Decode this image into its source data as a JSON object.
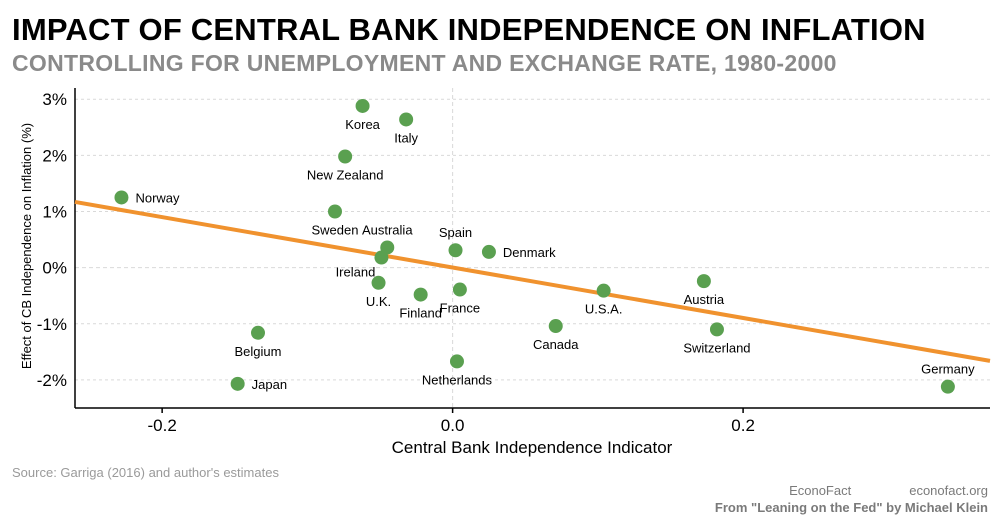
{
  "title": "IMPACT OF CENTRAL BANK INDEPENDENCE ON INFLATION",
  "subtitle": "CONTROLLING FOR UNEMPLOYMENT AND EXCHANGE RATE, 1980-2000",
  "footer": {
    "source": "Source: Garriga (2016) and author's estimates",
    "brand": "EconoFact",
    "website": "econofact.org",
    "from": "From \"Leaning on the Fed\" by Michael Klein"
  },
  "colors": {
    "points": "#5aa050",
    "trend": "#f0922e",
    "grid": "#d9d9d9",
    "axis": "#000000"
  },
  "chart_data": {
    "type": "scatter",
    "xlabel": "Central Bank Independence Indicator",
    "ylabel": "Effect of CB Independence on Inflation (%)",
    "xlim": [
      -0.26,
      0.37
    ],
    "ylim": [
      -2.5,
      3.2
    ],
    "xticks": [
      -0.2,
      0.0,
      0.2
    ],
    "xtick_labels": [
      "-0.2",
      "0.0",
      "0.2"
    ],
    "yticks": [
      -2,
      -1,
      0,
      1,
      2,
      3
    ],
    "ytick_labels": [
      "-2%",
      "-1%",
      "0%",
      "1%",
      "2%",
      "3%"
    ],
    "reference_lines": {
      "x": 0,
      "y": 0
    },
    "points": [
      {
        "label": "Korea",
        "x": -0.062,
        "y": 2.88,
        "label_pos": "below"
      },
      {
        "label": "Italy",
        "x": -0.032,
        "y": 2.64,
        "label_pos": "below"
      },
      {
        "label": "New Zealand",
        "x": -0.074,
        "y": 1.98,
        "label_pos": "below"
      },
      {
        "label": "Norway",
        "x": -0.228,
        "y": 1.25,
        "label_pos": "right"
      },
      {
        "label": "Sweden",
        "x": -0.081,
        "y": 1.0,
        "label_pos": "below"
      },
      {
        "label": "Australia",
        "x": -0.045,
        "y": 0.36,
        "label_pos": "above"
      },
      {
        "label": "Ireland",
        "x": -0.049,
        "y": 0.18,
        "label_pos": "below-left"
      },
      {
        "label": "Spain",
        "x": 0.002,
        "y": 0.31,
        "label_pos": "above"
      },
      {
        "label": "Denmark",
        "x": 0.025,
        "y": 0.28,
        "label_pos": "right"
      },
      {
        "label": "U.K.",
        "x": -0.051,
        "y": -0.27,
        "label_pos": "below"
      },
      {
        "label": "Finland",
        "x": -0.022,
        "y": -0.48,
        "label_pos": "below"
      },
      {
        "label": "France",
        "x": 0.005,
        "y": -0.39,
        "label_pos": "below"
      },
      {
        "label": "U.S.A.",
        "x": 0.104,
        "y": -0.41,
        "label_pos": "below"
      },
      {
        "label": "Austria",
        "x": 0.173,
        "y": -0.24,
        "label_pos": "below"
      },
      {
        "label": "Canada",
        "x": 0.071,
        "y": -1.04,
        "label_pos": "below"
      },
      {
        "label": "Switzerland",
        "x": 0.182,
        "y": -1.1,
        "label_pos": "below"
      },
      {
        "label": "Belgium",
        "x": -0.134,
        "y": -1.16,
        "label_pos": "below"
      },
      {
        "label": "Netherlands",
        "x": 0.003,
        "y": -1.67,
        "label_pos": "below"
      },
      {
        "label": "Japan",
        "x": -0.148,
        "y": -2.07,
        "label_pos": "right"
      },
      {
        "label": "Germany",
        "x": 0.341,
        "y": -2.12,
        "label_pos": "above"
      }
    ],
    "trend_line": {
      "x": [
        -0.26,
        0.37
      ],
      "y": [
        1.17,
        -1.66
      ]
    }
  }
}
